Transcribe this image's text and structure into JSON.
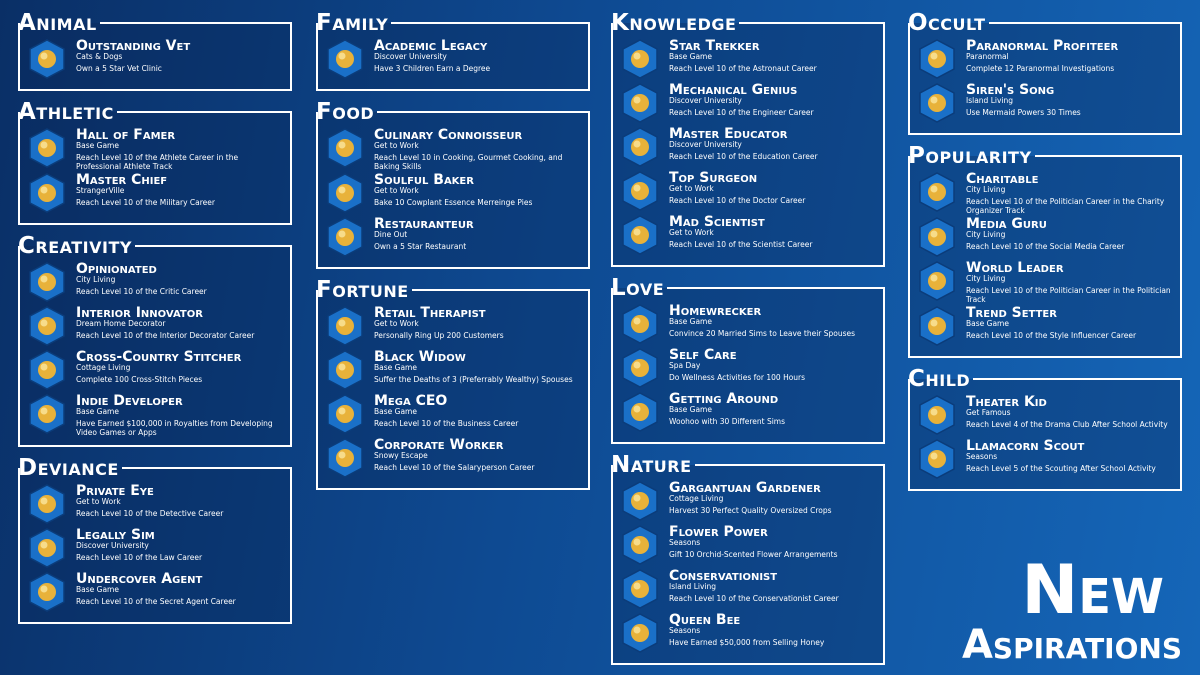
{
  "groups": [
    {
      "title": "Animal",
      "items": [
        {
          "name": "Outstanding Vet",
          "pack": "Cats & Dogs",
          "goal": "Own a 5 Star Vet Clinic"
        }
      ]
    },
    {
      "title": "Athletic",
      "items": [
        {
          "name": "Hall of Famer",
          "pack": "Base Game",
          "goal": "Reach Level 10 of the Athlete Career in the Professional Athlete Track"
        },
        {
          "name": "Master Chief",
          "pack": "StrangerVille",
          "goal": "Reach Level 10 of the Military Career"
        }
      ]
    },
    {
      "title": "Creativity",
      "items": [
        {
          "name": "Opinionated",
          "pack": "City Living",
          "goal": "Reach Level 10 of the Critic Career"
        },
        {
          "name": "Interior Innovator",
          "pack": "Dream Home Decorator",
          "goal": "Reach Level 10 of the Interior Decorator Career"
        },
        {
          "name": "Cross-Country Stitcher",
          "pack": "Cottage Living",
          "goal": "Complete 100 Cross-Stitch Pieces"
        },
        {
          "name": "Indie Developer",
          "pack": "Base Game",
          "goal": "Have Earned $100,000 in Royalties from Developing Video Games or Apps"
        }
      ]
    },
    {
      "title": "Deviance",
      "items": [
        {
          "name": "Private Eye",
          "pack": "Get to Work",
          "goal": "Reach Level 10 of the Detective Career"
        },
        {
          "name": "Legally Sim",
          "pack": "Discover University",
          "goal": "Reach Level 10 of the Law Career"
        },
        {
          "name": "Undercover Agent",
          "pack": "Base Game",
          "goal": "Reach Level 10 of the Secret Agent Career"
        }
      ]
    },
    {
      "title": "Family",
      "items": [
        {
          "name": "Academic Legacy",
          "pack": "Discover University",
          "goal": "Have 3 Children Earn a Degree"
        }
      ]
    },
    {
      "title": "Food",
      "items": [
        {
          "name": "Culinary Connoisseur",
          "pack": "Get to Work",
          "goal": "Reach Level 10 in Cooking, Gourmet Cooking, and Baking Skills"
        },
        {
          "name": "Soulful Baker",
          "pack": "Get to Work",
          "goal": "Bake 10 Cowplant Essence Merreinge Pies"
        },
        {
          "name": "Restauranteur",
          "pack": "Dine Out",
          "goal": "Own a 5 Star Restaurant"
        }
      ]
    },
    {
      "title": "Fortune",
      "items": [
        {
          "name": "Retail Therapist",
          "pack": "Get to Work",
          "goal": "Personally Ring Up 200 Customers"
        },
        {
          "name": "Black Widow",
          "pack": "Base Game",
          "goal": "Suffer the Deaths of 3 (Preferrably Wealthy) Spouses"
        },
        {
          "name": "Mega CEO",
          "pack": "Base Game",
          "goal": "Reach Level 10 of the Business Career"
        },
        {
          "name": "Corporate Worker",
          "pack": "Snowy Escape",
          "goal": "Reach Level 10 of the Salaryperson Career"
        }
      ]
    },
    {
      "title": "Knowledge",
      "items": [
        {
          "name": "Star Trekker",
          "pack": "Base Game",
          "goal": "Reach Level 10 of the Astronaut Career"
        },
        {
          "name": "Mechanical Genius",
          "pack": "Discover University",
          "goal": "Reach Level 10 of the Engineer Career"
        },
        {
          "name": "Master Educator",
          "pack": "Discover University",
          "goal": "Reach Level 10 of the Education Career"
        },
        {
          "name": "Top Surgeon",
          "pack": "Get to Work",
          "goal": "Reach Level 10 of the Doctor Career"
        },
        {
          "name": "Mad Scientist",
          "pack": "Get to Work",
          "goal": "Reach Level 10 of the Scientist Career"
        }
      ]
    },
    {
      "title": "Love",
      "items": [
        {
          "name": "Homewrecker",
          "pack": "Base Game",
          "goal": "Convince 20 Married Sims to Leave their Spouses"
        },
        {
          "name": "Self Care",
          "pack": "Spa Day",
          "goal": "Do Wellness Activities for 100 Hours"
        },
        {
          "name": "Getting Around",
          "pack": "Base Game",
          "goal": "Woohoo with 30 Different Sims"
        }
      ]
    },
    {
      "title": "Nature",
      "items": [
        {
          "name": "Gargantuan Gardener",
          "pack": "Cottage Living",
          "goal": "Harvest 30 Perfect Quality Oversized Crops"
        },
        {
          "name": "Flower Power",
          "pack": "Seasons",
          "goal": "Gift 10 Orchid-Scented Flower Arrangements"
        },
        {
          "name": "Conservationist",
          "pack": "Island Living",
          "goal": "Reach Level 10 of the Conservationist Career"
        },
        {
          "name": "Queen Bee",
          "pack": "Seasons",
          "goal": "Have Earned $50,000 from Selling Honey"
        }
      ]
    },
    {
      "title": "Occult",
      "items": [
        {
          "name": "Paranormal Profiteer",
          "pack": "Paranormal",
          "goal": "Complete 12 Paranormal Investigations"
        },
        {
          "name": "Siren's Song",
          "pack": "Island Living",
          "goal": "Use Mermaid Powers 30 Times"
        }
      ]
    },
    {
      "title": "Popularity",
      "items": [
        {
          "name": "Charitable",
          "pack": "City Living",
          "goal": "Reach Level 10 of the Politician Career in the Charity Organizer Track"
        },
        {
          "name": "Media Guru",
          "pack": "City Living",
          "goal": "Reach Level 10 of the Social Media Career"
        },
        {
          "name": "World Leader",
          "pack": "City Living",
          "goal": "Reach Level 10 of the Politician Career in the Politician Track"
        },
        {
          "name": "Trend Setter",
          "pack": "Base Game",
          "goal": "Reach Level 10 of the Style Influencer Career"
        }
      ]
    },
    {
      "title": "Child",
      "items": [
        {
          "name": "Theater Kid",
          "pack": "Get Famous",
          "goal": "Reach Level 4 of the Drama Club After School Activity"
        },
        {
          "name": "Llamacorn Scout",
          "pack": "Seasons",
          "goal": "Reach Level 5 of the Scouting After School Activity"
        }
      ]
    }
  ],
  "banner": {
    "line1": "New",
    "line2": "Aspirations"
  }
}
